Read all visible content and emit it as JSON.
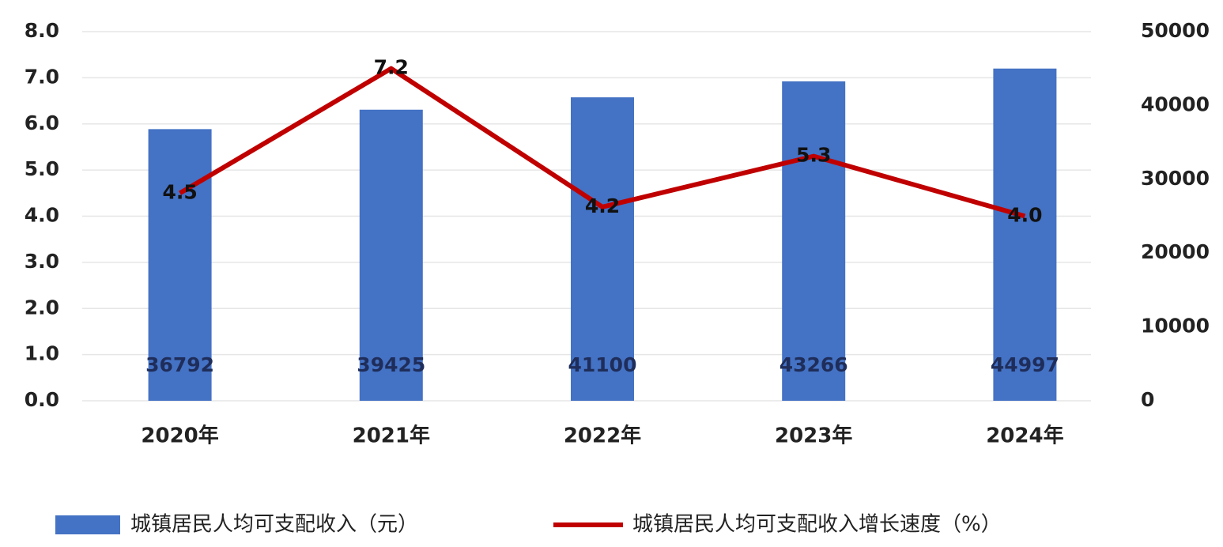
{
  "chart_data": {
    "type": "bar",
    "categories": [
      "2020年",
      "2021年",
      "2022年",
      "2023年",
      "2024年"
    ],
    "series": [
      {
        "name": "城镇居民人均可支配收入（元）",
        "type": "bar",
        "axis": "y2",
        "color": "#4472c4",
        "values": [
          36792,
          39425,
          41100,
          43266,
          44997
        ]
      },
      {
        "name": "城镇居民人均可支配收入增长速度（%）",
        "type": "line",
        "axis": "y",
        "color": "#c00000",
        "values": [
          4.5,
          7.2,
          4.2,
          5.3,
          4.0
        ],
        "value_labels": [
          "4.5",
          "7.2",
          "4.2",
          "5.3",
          "4.0"
        ]
      }
    ],
    "ylim": [
      0,
      8
    ],
    "yticks": [
      {
        "value": 0,
        "label": "0.0"
      },
      {
        "value": 1,
        "label": "1.0"
      },
      {
        "value": 2,
        "label": "2.0"
      },
      {
        "value": 3,
        "label": "3.0"
      },
      {
        "value": 4,
        "label": "4.0"
      },
      {
        "value": 5,
        "label": "5.0"
      },
      {
        "value": 6,
        "label": "6.0"
      },
      {
        "value": 7,
        "label": "7.0"
      },
      {
        "value": 8,
        "label": "8.0"
      }
    ],
    "y2lim": [
      0,
      50000
    ],
    "y2ticks": [
      0,
      10000,
      20000,
      30000,
      40000,
      50000
    ],
    "grid": true,
    "legend": "bottom"
  }
}
